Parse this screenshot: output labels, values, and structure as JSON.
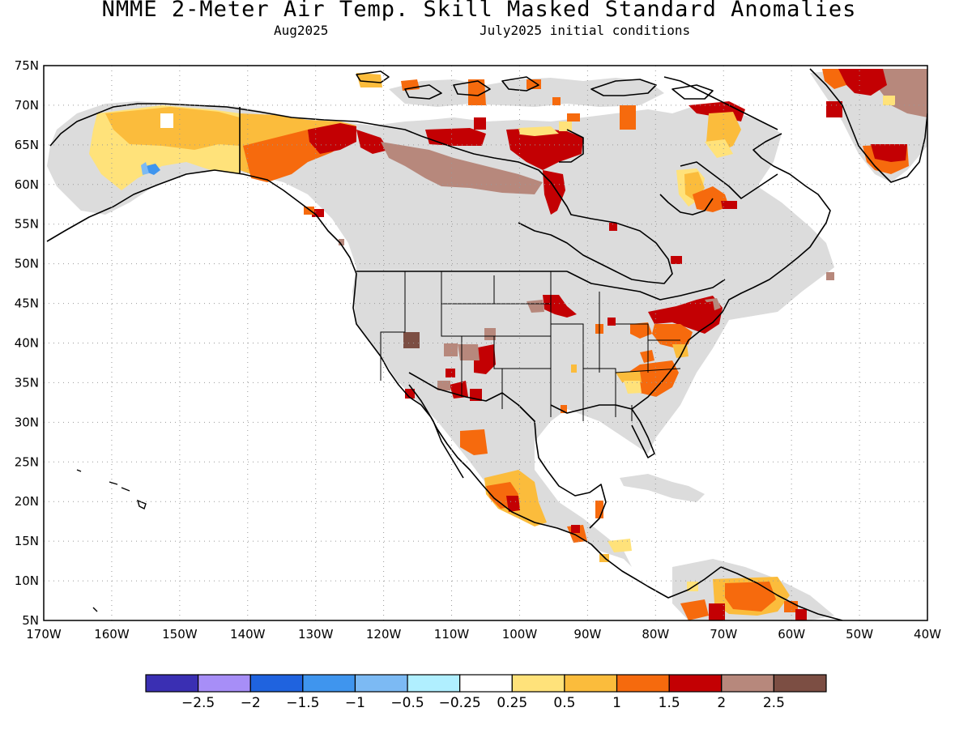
{
  "header": {
    "title": "NMME 2-Meter Air Temp. Skill Masked Standard Anomalies",
    "target_month": "Aug2025",
    "initial_conditions": "July2025 initial conditions"
  },
  "map": {
    "region": "North America",
    "lat_labels": [
      "75N",
      "70N",
      "65N",
      "60N",
      "55N",
      "50N",
      "45N",
      "40N",
      "35N",
      "30N",
      "25N",
      "20N",
      "15N",
      "10N",
      "5N"
    ],
    "lon_labels": [
      "170W",
      "160W",
      "150W",
      "140W",
      "130W",
      "120W",
      "110W",
      "100W",
      "90W",
      "80W",
      "70W",
      "60W",
      "50W",
      "40W"
    ],
    "masked_color": "#dcdcdc",
    "coast_color": "#000000",
    "grid": "dotted"
  },
  "colorbar": {
    "colors": [
      "#3a2fb3",
      "#a78ef7",
      "#1f63df",
      "#3f95ee",
      "#7cbaf4",
      "#b0efff",
      "#ffffff",
      "#ffe27a",
      "#fbbc3c",
      "#f66a0d",
      "#c30003",
      "#b7887c",
      "#7c4e43"
    ],
    "labels": [
      "−2.5",
      "−2",
      "−1.5",
      "−1",
      "−0.5",
      "−0.25",
      "0.25",
      "0.5",
      "1",
      "1.5",
      "2",
      "2.5"
    ]
  }
}
